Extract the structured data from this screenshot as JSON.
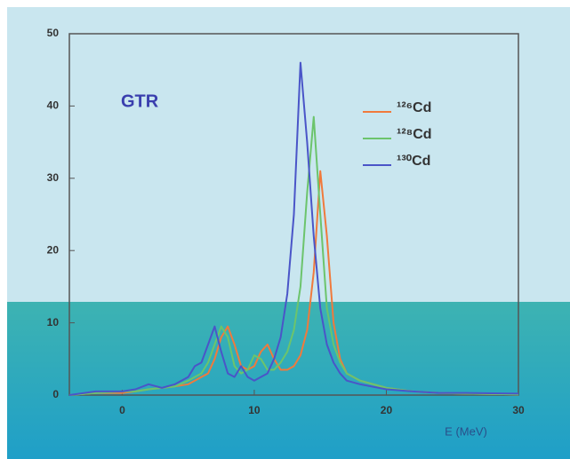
{
  "chart_data": {
    "type": "line",
    "annotation": "GTR",
    "x_label": "E (MeV)",
    "x": [
      -4,
      -2,
      0,
      1,
      2,
      3,
      4,
      5,
      5.5,
      6,
      6.5,
      7,
      7.5,
      8,
      8.5,
      9,
      9.5,
      10,
      10.5,
      11,
      11.5,
      12,
      12.5,
      13,
      13.5,
      14,
      14.5,
      15,
      15.5,
      16,
      16.5,
      17,
      18,
      20,
      22,
      24,
      26,
      30
    ],
    "series": [
      {
        "name": "¹²⁶Cd",
        "color": "#f07a3c",
        "values": [
          0,
          0.3,
          0.3,
          0.5,
          0.8,
          1,
          1.2,
          1.5,
          2,
          2.5,
          3,
          5,
          8,
          9.5,
          7,
          4,
          3.5,
          4,
          6,
          7,
          5,
          3.5,
          3.5,
          4,
          5.5,
          9,
          17,
          31,
          22,
          10,
          5,
          3,
          2,
          1,
          0.5,
          0.3,
          0.2,
          0.1
        ]
      },
      {
        "name": "¹²⁸Cd",
        "color": "#6cc46c",
        "values": [
          0,
          0.3,
          0.5,
          0.5,
          0.8,
          1,
          1.2,
          2,
          2.5,
          3,
          4.5,
          7,
          9.5,
          8,
          4,
          3,
          3.5,
          5.5,
          5,
          3.5,
          3.5,
          4.5,
          6,
          9,
          15,
          28,
          38.5,
          25,
          12,
          7,
          4.5,
          3,
          2,
          1,
          0.5,
          0.3,
          0.2,
          0.1
        ]
      },
      {
        "name": "¹³⁰Cd",
        "color": "#4a55c8",
        "values": [
          0,
          0.5,
          0.5,
          0.8,
          1.5,
          1,
          1.5,
          2.5,
          4,
          4.5,
          7,
          9.5,
          6,
          3,
          2.5,
          4,
          2.5,
          2,
          2.5,
          3,
          5,
          8,
          14,
          25,
          46,
          35,
          22,
          12,
          7,
          4.5,
          3,
          2,
          1.5,
          0.8,
          0.5,
          0.3,
          0.3,
          0.2
        ]
      }
    ],
    "xlim": [
      -4,
      30
    ],
    "xticks": [
      0,
      10,
      20,
      30
    ],
    "ylim": [
      0,
      50
    ],
    "yticks": [
      0,
      10,
      20,
      30,
      40,
      50
    ]
  }
}
